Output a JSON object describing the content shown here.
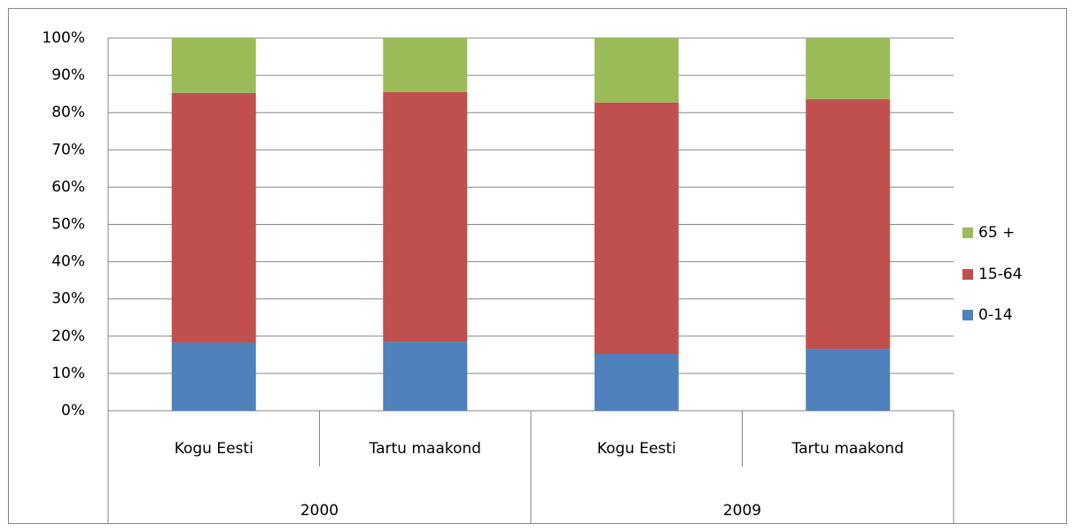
{
  "chart_data": {
    "type": "stacked_bar_percent",
    "categories": [
      "Kogu Eesti",
      "Tartu maakond",
      "Kogu Eesti",
      "Tartu maakond"
    ],
    "group_labels": [
      "2000",
      "2009"
    ],
    "series": [
      {
        "name": "0-14",
        "color": "#4f81bd",
        "values": [
          18.3,
          18.5,
          15.2,
          16.6
        ]
      },
      {
        "name": "15-64",
        "color": "#c0504d",
        "values": [
          67.0,
          67.0,
          67.5,
          67.0
        ]
      },
      {
        "name": "65 +",
        "color": "#9bbb59",
        "values": [
          14.7,
          14.5,
          17.3,
          16.4
        ]
      }
    ],
    "ylim": [
      0,
      100
    ],
    "yticks": [
      {
        "value": 0,
        "label": "0%"
      },
      {
        "value": 10,
        "label": "10%"
      },
      {
        "value": 20,
        "label": "20%"
      },
      {
        "value": 30,
        "label": "30%"
      },
      {
        "value": 40,
        "label": "40%"
      },
      {
        "value": 50,
        "label": "50%"
      },
      {
        "value": 60,
        "label": "60%"
      },
      {
        "value": 70,
        "label": "70%"
      },
      {
        "value": 80,
        "label": "80%"
      },
      {
        "value": 90,
        "label": "90%"
      },
      {
        "value": 100,
        "label": "100%"
      }
    ],
    "grid": true,
    "legend": "right"
  }
}
